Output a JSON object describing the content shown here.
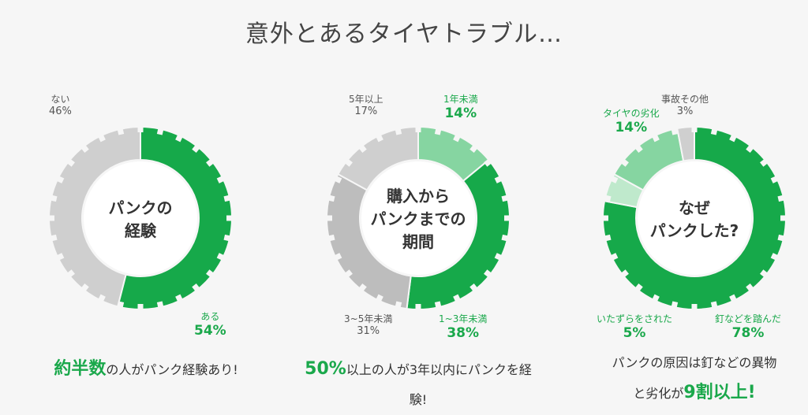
{
  "page": {
    "title": "意外とあるタイヤトラブル…"
  },
  "colors": {
    "green": "#16a94a",
    "light_green": "#86d5a1",
    "pale_green": "#bfe9cc",
    "gray": "#cfcfcf",
    "mid_gray": "#bdbdbd"
  },
  "chart_data": [
    {
      "type": "pie",
      "title": "パンクの経験",
      "center_lines": [
        "パンクの",
        "経験"
      ],
      "slices": [
        {
          "label": "ある",
          "value": 54,
          "pct": "54%",
          "color": "#16a94a"
        },
        {
          "label": "ない",
          "value": 46,
          "pct": "46%",
          "color": "#cfcfcf"
        }
      ],
      "caption": {
        "highlight": "約半数",
        "text": "の人がパンク経験あり!"
      }
    },
    {
      "type": "pie",
      "title": "購入からパンクまでの期間",
      "center_lines": [
        "購入から",
        "パンクまでの",
        "期間"
      ],
      "slices": [
        {
          "label": "1年未満",
          "value": 14,
          "pct": "14%",
          "color": "#86d5a1"
        },
        {
          "label": "1~3年未満",
          "value": 38,
          "pct": "38%",
          "color": "#16a94a"
        },
        {
          "label": "3~5年未満",
          "value": 31,
          "pct": "31%",
          "color": "#bdbdbd"
        },
        {
          "label": "5年以上",
          "value": 17,
          "pct": "17%",
          "color": "#cfcfcf"
        }
      ],
      "caption": {
        "highlight": "50%",
        "text_line1": "以上の人が3年以内にパンクを経",
        "text_line2": "験!"
      }
    },
    {
      "type": "pie",
      "title": "なぜパンクした?",
      "center_lines": [
        "なぜ",
        "パンクした?"
      ],
      "slices": [
        {
          "label": "釘などを踏んだ",
          "value": 78,
          "pct": "78%",
          "color": "#16a94a"
        },
        {
          "label": "いたずらをされた",
          "value": 5,
          "pct": "5%",
          "color": "#bfe9cc"
        },
        {
          "label": "タイヤの劣化",
          "value": 14,
          "pct": "14%",
          "color": "#86d5a1"
        },
        {
          "label": "事故その他",
          "value": 3,
          "pct": "3%",
          "color": "#cfcfcf"
        }
      ],
      "caption": {
        "line1": "パンクの原因は釘などの異物",
        "line2_pre": "と劣化が",
        "highlight": "9割以上!"
      }
    }
  ]
}
